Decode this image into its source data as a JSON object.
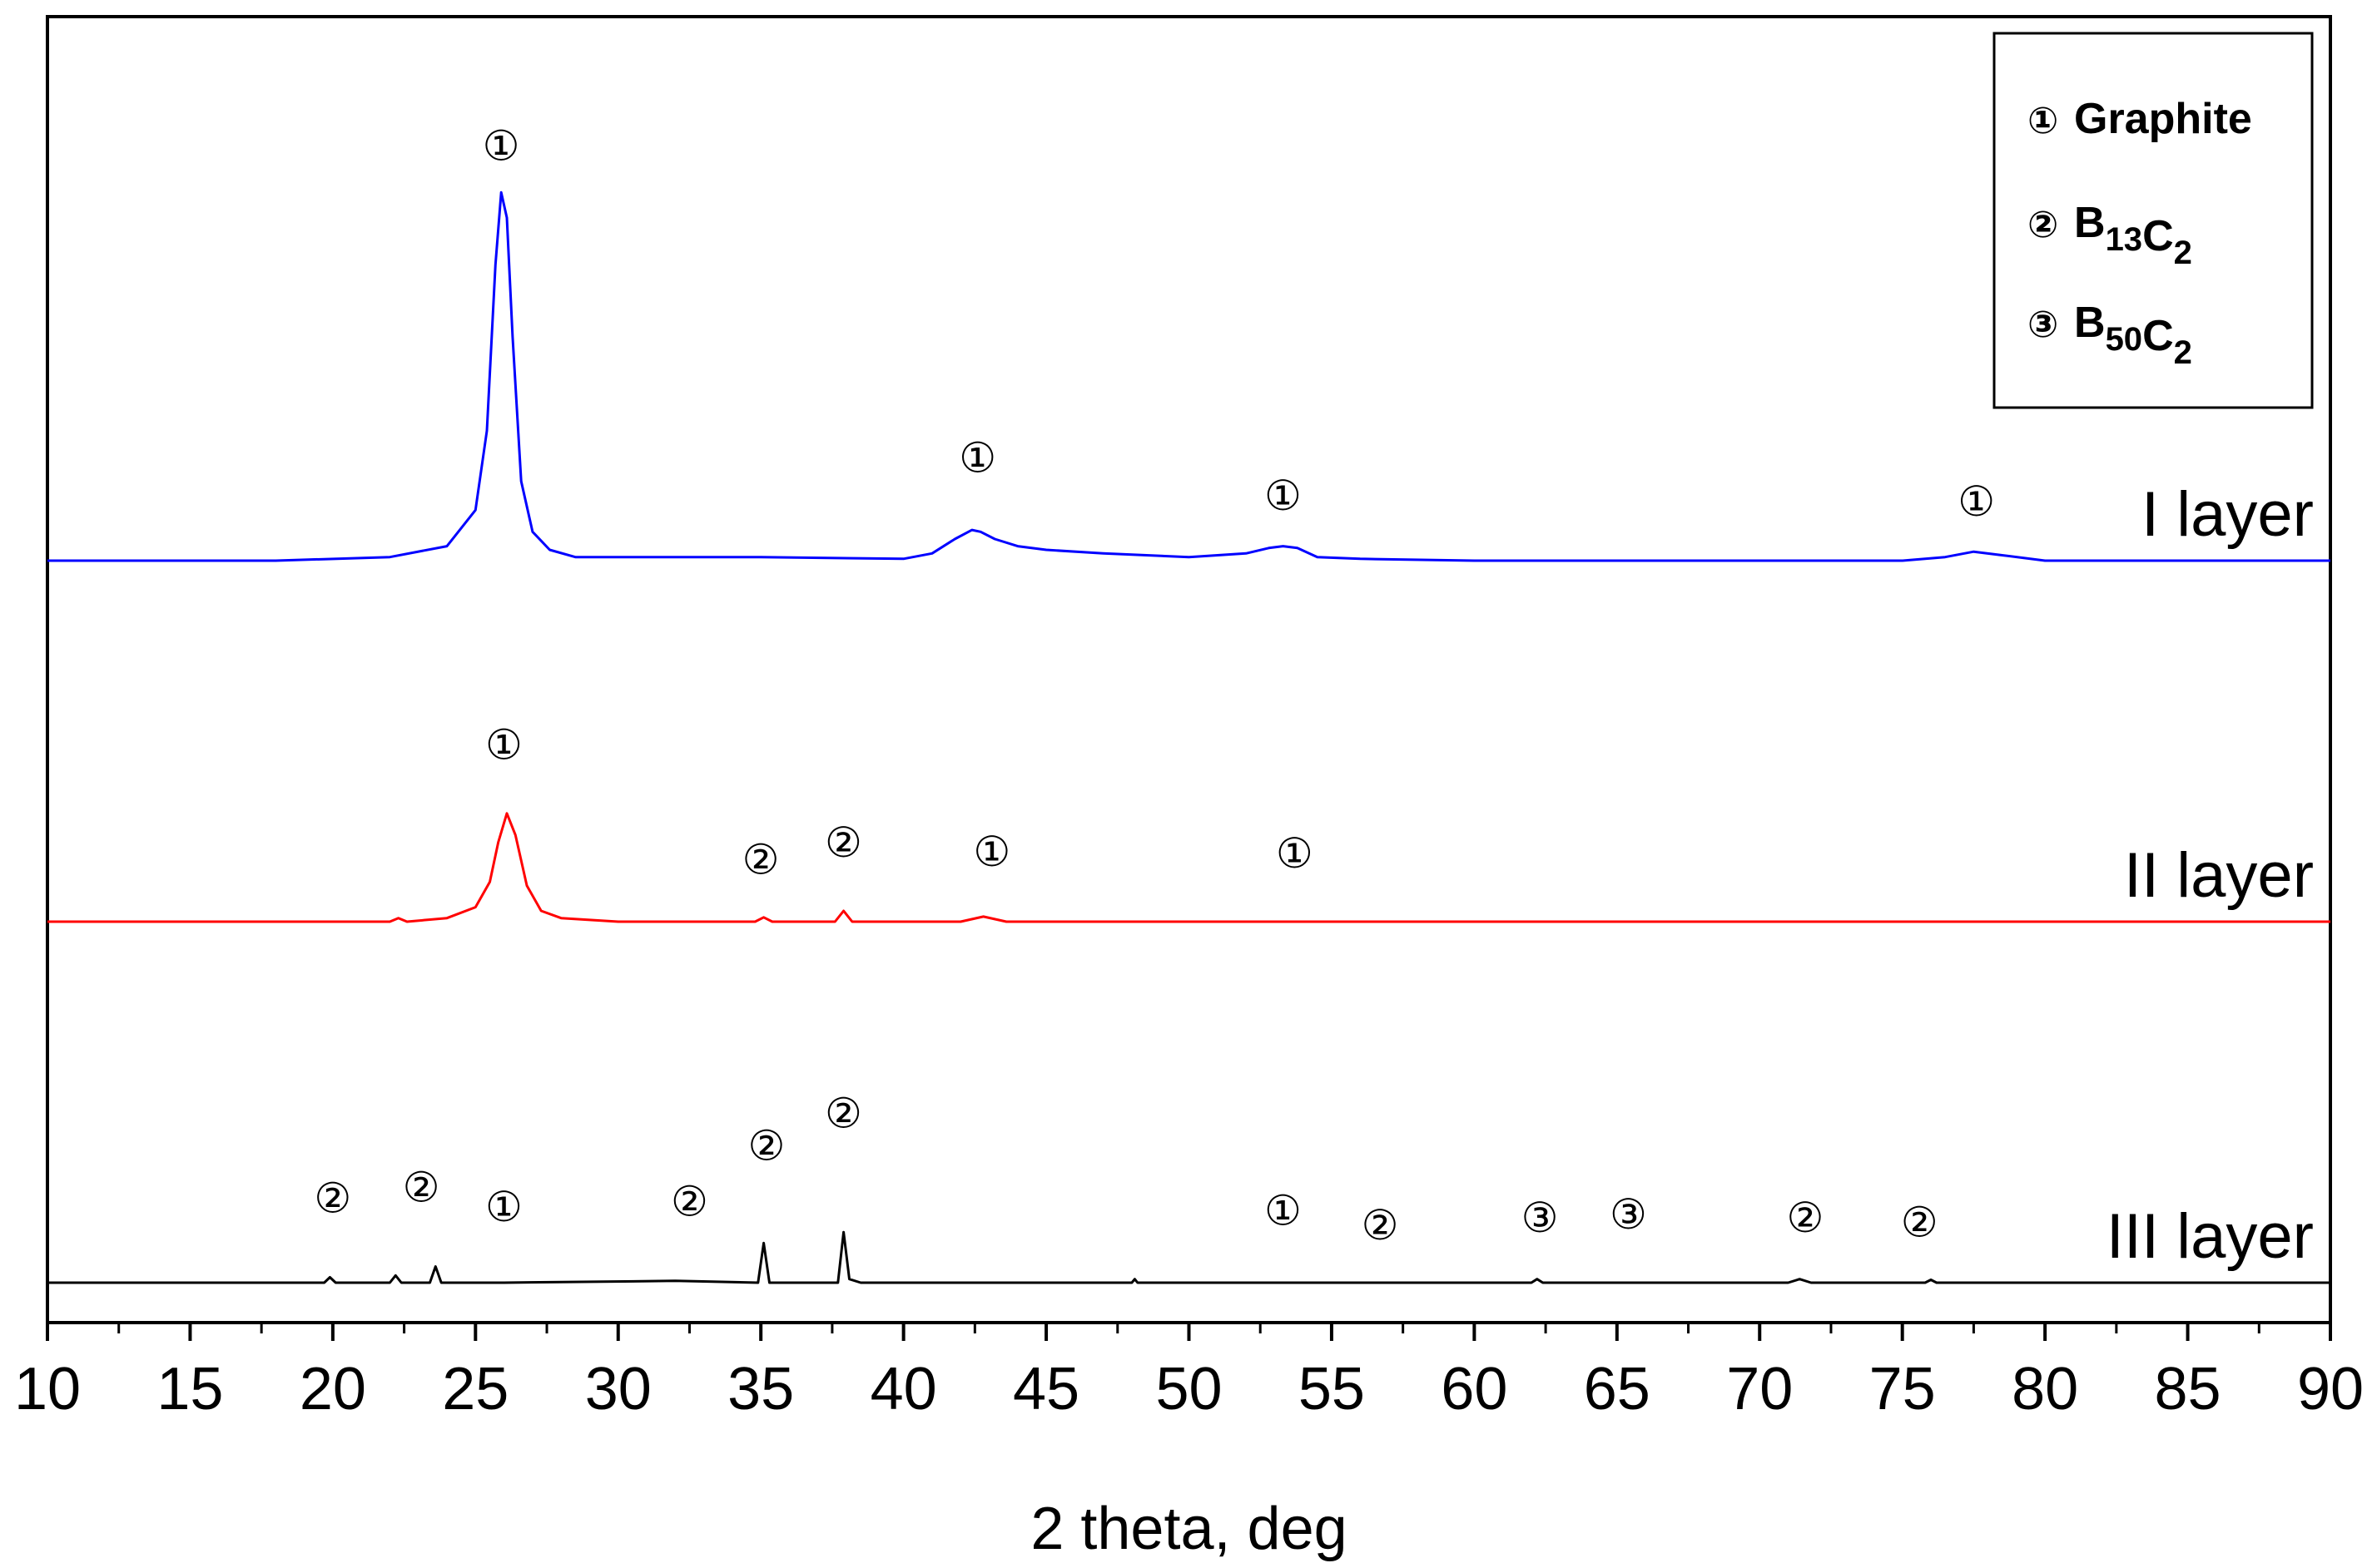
{
  "chart_data": {
    "type": "line",
    "xlabel": "2 theta, deg",
    "ylabel": "",
    "xlim": [
      10,
      90
    ],
    "x_ticks": [
      "10",
      "15",
      "20",
      "25",
      "30",
      "35",
      "40",
      "45",
      "50",
      "55",
      "60",
      "65",
      "70",
      "75",
      "80",
      "85",
      "90"
    ],
    "y_ticks_shown": false,
    "grid": false,
    "legend": {
      "placement": "top-right",
      "entries": [
        {
          "marker": "①",
          "base": "Graphite",
          "parts": []
        },
        {
          "marker": "②",
          "base": "",
          "parts": [
            [
              "B",
              "13"
            ],
            [
              "C",
              "2"
            ]
          ]
        },
        {
          "marker": "③",
          "base": "",
          "parts": [
            [
              "B",
              "50"
            ],
            [
              "C",
              "2"
            ]
          ]
        }
      ]
    },
    "colors": {
      "I layer": "#0000ff",
      "II layer": "#ff0000",
      "III layer": "#000000"
    },
    "series": [
      {
        "name": "I layer",
        "color": "#0000ff",
        "offset": 2.0,
        "x": [
          10,
          18,
          22,
          24,
          25,
          25.4,
          25.7,
          25.9,
          26.1,
          26.3,
          26.6,
          27.0,
          27.6,
          28.5,
          30,
          35,
          40,
          41,
          41.8,
          42.4,
          42.7,
          43.2,
          44,
          45,
          47,
          50,
          52,
          52.8,
          53.3,
          53.8,
          54.5,
          56,
          60,
          65,
          70,
          75,
          76.5,
          77.5,
          78.5,
          80,
          85,
          90
        ],
        "y": [
          0.0,
          0.0,
          0.01,
          0.04,
          0.14,
          0.36,
          0.82,
          1.02,
          0.95,
          0.62,
          0.22,
          0.08,
          0.03,
          0.01,
          0.01,
          0.01,
          0.005,
          0.02,
          0.06,
          0.085,
          0.08,
          0.06,
          0.04,
          0.03,
          0.02,
          0.01,
          0.02,
          0.035,
          0.04,
          0.035,
          0.01,
          0.005,
          0.0,
          0.0,
          0.0,
          0.0,
          0.01,
          0.025,
          0.015,
          0.0,
          0.0,
          0.0
        ]
      },
      {
        "name": "II layer",
        "color": "#ff0000",
        "offset": 1.0,
        "x": [
          10,
          20,
          22,
          22.3,
          22.6,
          24,
          25,
          25.5,
          25.8,
          26.1,
          26.4,
          26.8,
          27.3,
          28,
          30,
          34.8,
          35.1,
          35.4,
          37.6,
          37.9,
          38.2,
          42,
          42.8,
          43.6,
          50,
          60,
          70,
          80,
          90
        ],
        "y": [
          0.0,
          0.0,
          0.0,
          0.01,
          0.0,
          0.01,
          0.04,
          0.11,
          0.22,
          0.3,
          0.24,
          0.1,
          0.03,
          0.01,
          0.0,
          0.0,
          0.012,
          0.0,
          0.0,
          0.03,
          0.0,
          0.0,
          0.014,
          0.0,
          0.0,
          0.0,
          0.0,
          0.0,
          0.0
        ]
      },
      {
        "name": "III layer",
        "color": "#000000",
        "offset": 0.0,
        "x": [
          10,
          19.7,
          19.9,
          20.1,
          22,
          22.2,
          22.4,
          23.4,
          23.6,
          23.8,
          26,
          32,
          34.9,
          35.1,
          35.3,
          37.7,
          37.9,
          38.1,
          38.5,
          48,
          48.1,
          48.2,
          54,
          62,
          62.2,
          62.4,
          64,
          66,
          71,
          71.4,
          71.8,
          75.8,
          76,
          76.2,
          90
        ],
        "y": [
          0.0,
          0.0,
          0.015,
          0.0,
          0.0,
          0.02,
          0.0,
          0.0,
          0.045,
          0.0,
          0.0,
          0.005,
          0.0,
          0.11,
          0.0,
          0.0,
          0.14,
          0.01,
          0.0,
          0.0,
          0.01,
          0.0,
          0.0,
          0.0,
          0.01,
          0.0,
          0.0,
          0.0,
          0.0,
          0.01,
          0.0,
          0.0,
          0.008,
          0.0,
          0.0
        ]
      }
    ],
    "layer_labels": [
      {
        "text": "I layer",
        "series": 0
      },
      {
        "text": "II layer",
        "series": 1
      },
      {
        "text": "III layer",
        "series": 2
      }
    ],
    "peak_annotations": [
      {
        "series": 0,
        "x": 25.9,
        "label": "①",
        "rise": 0.09
      },
      {
        "series": 0,
        "x": 42.6,
        "label": "①",
        "rise": 0.16
      },
      {
        "series": 0,
        "x": 53.3,
        "label": "①",
        "rise": 0.1
      },
      {
        "series": 0,
        "x": 77.6,
        "label": "①",
        "rise": 0.1
      },
      {
        "series": 1,
        "x": 26.0,
        "label": "①",
        "rise": 0.15
      },
      {
        "series": 1,
        "x": 35.0,
        "label": "②",
        "rise": 0.12
      },
      {
        "series": 1,
        "x": 37.9,
        "label": "②",
        "rise": 0.15
      },
      {
        "series": 1,
        "x": 43.1,
        "label": "①",
        "rise": 0.14
      },
      {
        "series": 1,
        "x": 53.7,
        "label": "①",
        "rise": 0.15
      },
      {
        "series": 2,
        "x": 20.0,
        "label": "②",
        "rise": 0.18
      },
      {
        "series": 2,
        "x": 23.1,
        "label": "②",
        "rise": 0.18
      },
      {
        "series": 2,
        "x": 26.0,
        "label": "①",
        "rise": 0.17
      },
      {
        "series": 2,
        "x": 32.5,
        "label": "②",
        "rise": 0.18
      },
      {
        "series": 2,
        "x": 35.2,
        "label": "②",
        "rise": 0.23
      },
      {
        "series": 2,
        "x": 37.9,
        "label": "②",
        "rise": 0.29
      },
      {
        "series": 2,
        "x": 53.3,
        "label": "①",
        "rise": 0.16
      },
      {
        "series": 2,
        "x": 56.7,
        "label": "②",
        "rise": 0.12
      },
      {
        "series": 2,
        "x": 62.3,
        "label": "③",
        "rise": 0.13
      },
      {
        "series": 2,
        "x": 65.4,
        "label": "③",
        "rise": 0.15
      },
      {
        "series": 2,
        "x": 71.6,
        "label": "②",
        "rise": 0.13
      },
      {
        "series": 2,
        "x": 75.6,
        "label": "②",
        "rise": 0.12
      }
    ]
  }
}
